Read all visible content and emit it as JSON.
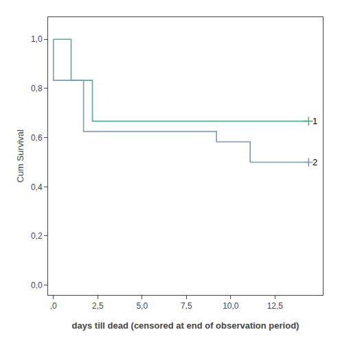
{
  "chart_data": {
    "type": "step",
    "xlabel": "days till dead (censored at end of observation period)",
    "ylabel": "Cum Survival",
    "xlim": [
      -0.3,
      15.2
    ],
    "ylim": [
      -0.04,
      1.09
    ],
    "xticks": [
      {
        "value": 0,
        "label": ",0"
      },
      {
        "value": 2.5,
        "label": "2,5"
      },
      {
        "value": 5.0,
        "label": "5,0"
      },
      {
        "value": 7.5,
        "label": "7,5"
      },
      {
        "value": 10.0,
        "label": "10,0"
      },
      {
        "value": 12.5,
        "label": "12,5"
      }
    ],
    "yticks": [
      {
        "value": 0.0,
        "label": "0,0"
      },
      {
        "value": 0.2,
        "label": "0,2"
      },
      {
        "value": 0.4,
        "label": "0,4"
      },
      {
        "value": 0.6,
        "label": "0,6"
      },
      {
        "value": 0.8,
        "label": "0,8"
      },
      {
        "value": 1.0,
        "label": "1,0"
      }
    ],
    "grid": false,
    "marker": "cross-thin",
    "series": [
      {
        "color": "#5aab8f",
        "x": [
          0.0,
          1.0,
          1.0,
          2.2,
          2.2,
          14.4
        ],
        "values": [
          1.0,
          1.0,
          0.833,
          0.833,
          0.667,
          0.667
        ],
        "censored": {
          "x": [
            14.4
          ],
          "y": [
            0.667
          ]
        }
      },
      {
        "color": "#7b9ab5",
        "x": [
          0.0,
          0.0,
          1.7,
          1.7,
          9.2,
          9.2,
          11.1,
          11.1,
          14.4
        ],
        "values": [
          1.0,
          0.833,
          0.833,
          0.625,
          0.625,
          0.583,
          0.583,
          0.5,
          0.5
        ],
        "censored": {
          "x": [
            14.4
          ],
          "y": [
            0.5
          ]
        }
      }
    ],
    "annotations": [
      {
        "x": 14.55,
        "y": 0.667,
        "text": "1"
      },
      {
        "x": 14.55,
        "y": 0.5,
        "text": "2"
      }
    ]
  }
}
